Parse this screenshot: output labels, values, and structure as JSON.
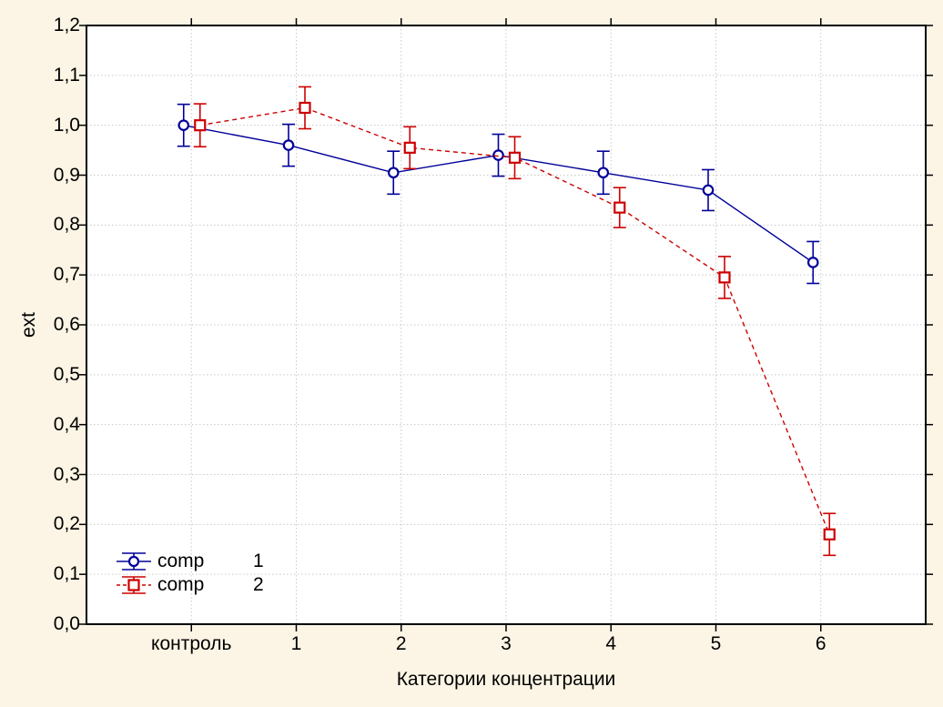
{
  "chart_data": {
    "type": "line",
    "title": "",
    "xlabel": "Категории концентрации",
    "ylabel": "ext",
    "ylim": [
      0.0,
      1.2
    ],
    "ytick_step": 0.1,
    "ytick_labels": [
      "0,0",
      "0,1",
      "0,2",
      "0,3",
      "0,4",
      "0,5",
      "0,6",
      "0,7",
      "0,8",
      "0,9",
      "1,0",
      "1,1",
      "1,2"
    ],
    "categories": [
      "контроль",
      "1",
      "2",
      "3",
      "4",
      "5",
      "6"
    ],
    "grid": "dotted, both axes",
    "legend_position": "bottom-left inside plot",
    "error_bars": true,
    "series": [
      {
        "name": "comp",
        "number": "1",
        "marker": "circle",
        "line": "solid",
        "color": "#000099",
        "values": [
          1.0,
          0.96,
          0.905,
          0.94,
          0.905,
          0.87,
          0.725
        ],
        "errors": [
          0.042,
          0.042,
          0.043,
          0.042,
          0.043,
          0.041,
          0.042
        ]
      },
      {
        "name": "comp",
        "number": "2",
        "marker": "square",
        "line": "dashed",
        "color": "#CC0000",
        "values": [
          1.0,
          1.035,
          0.955,
          0.935,
          0.835,
          0.695,
          0.18
        ],
        "errors": [
          0.043,
          0.042,
          0.042,
          0.042,
          0.04,
          0.042,
          0.042
        ]
      }
    ],
    "colors": {
      "background": "#FCF5E5",
      "plot_background": "#FFFFFF",
      "grid": "#C9C9C9",
      "frame": "#000000",
      "text": "#000000"
    }
  }
}
